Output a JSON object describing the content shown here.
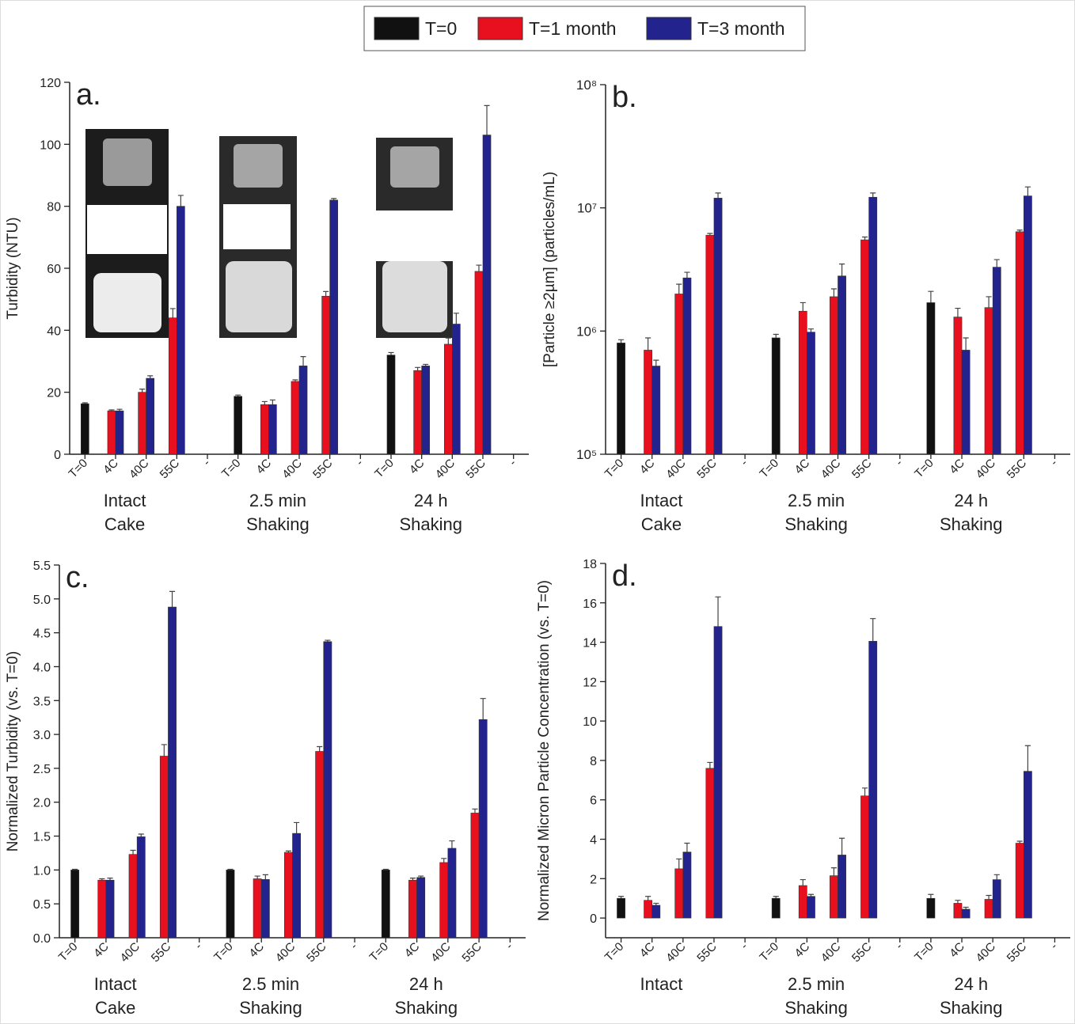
{
  "legend": [
    {
      "name": "T=0",
      "color": "#111111"
    },
    {
      "name": "T=1 month",
      "color": "#e8101e"
    },
    {
      "name": "T=3 month",
      "color": "#23238e"
    }
  ],
  "chart_data": [
    {
      "type": "bar",
      "panel_label": "a.",
      "ylabel": "Turbidity (NTU)",
      "log_scale": false,
      "categories": [
        "T=0",
        "4C",
        "40C",
        "55C",
        "-",
        "T=0",
        "4C",
        "40C",
        "55C",
        "-",
        "T=0",
        "4C",
        "40C",
        "55C",
        "-"
      ],
      "group_labels": [
        [
          "Intact",
          "Cake"
        ],
        [
          "2.5 min",
          "Shaking"
        ],
        [
          "24 h",
          "Shaking"
        ]
      ],
      "series": [
        {
          "values": [
            16.3,
            null,
            null,
            null,
            null,
            18.7,
            null,
            null,
            null,
            null,
            32,
            null,
            null,
            null,
            null
          ],
          "errors": [
            0.3,
            null,
            null,
            null,
            null,
            0.4,
            null,
            null,
            null,
            null,
            0.8,
            null,
            null,
            null,
            null
          ]
        },
        {
          "values": [
            null,
            14,
            20,
            44,
            null,
            null,
            16,
            23.5,
            51,
            null,
            null,
            27,
            35.5,
            59,
            null
          ],
          "errors": [
            null,
            0.3,
            1,
            3,
            null,
            null,
            1,
            0.5,
            1.5,
            null,
            null,
            1,
            2,
            2,
            null
          ]
        },
        {
          "values": [
            null,
            14,
            24.5,
            80,
            null,
            null,
            16,
            28.5,
            82,
            null,
            null,
            28.5,
            42,
            103,
            null
          ],
          "errors": [
            null,
            0.5,
            0.8,
            3.5,
            null,
            null,
            1.5,
            3,
            0.5,
            null,
            null,
            0.5,
            3.5,
            9.5,
            null
          ]
        }
      ],
      "ylim": [
        0,
        120
      ],
      "yticks": [
        0,
        20,
        40,
        60,
        80,
        100,
        120
      ]
    },
    {
      "type": "bar",
      "panel_label": "b.",
      "ylabel": "[Particle ≥2µm] (particles/mL)",
      "log_scale": true,
      "categories": [
        "T=0",
        "4C",
        "40C",
        "55C",
        "-",
        "T=0",
        "4C",
        "40C",
        "55C",
        "-",
        "T=0",
        "4C",
        "40C",
        "55C",
        "-"
      ],
      "group_labels": [
        [
          "Intact",
          "Cake"
        ],
        [
          "2.5 min",
          "Shaking"
        ],
        [
          "24 h",
          "Shaking"
        ]
      ],
      "series": [
        {
          "values": [
            800000,
            null,
            null,
            null,
            null,
            880000,
            null,
            null,
            null,
            null,
            1700000,
            null,
            null,
            null,
            null
          ],
          "errors": [
            50000,
            null,
            null,
            null,
            null,
            60000,
            null,
            null,
            null,
            null,
            400000,
            null,
            null,
            null,
            null
          ]
        },
        {
          "values": [
            null,
            700000,
            2000000,
            6000000,
            null,
            null,
            1450000,
            1900000,
            5500000,
            null,
            null,
            1300000,
            1550000,
            6400000,
            null
          ],
          "errors": [
            null,
            180000,
            400000,
            200000,
            null,
            null,
            250000,
            300000,
            300000,
            null,
            null,
            230000,
            350000,
            200000,
            null
          ]
        },
        {
          "values": [
            null,
            520000,
            2700000,
            12000000,
            null,
            null,
            980000,
            2800000,
            12200000,
            null,
            null,
            700000,
            3300000,
            12500000,
            null
          ],
          "errors": [
            null,
            60000,
            300000,
            1200000,
            null,
            null,
            60000,
            700000,
            1000000,
            null,
            null,
            180000,
            500000,
            2300000,
            null
          ]
        }
      ],
      "ylim": [
        100000,
        100000000
      ],
      "yticks": [
        {
          "value": 100000,
          "label": "10⁵"
        },
        {
          "value": 1000000,
          "label": "10⁶"
        },
        {
          "value": 10000000,
          "label": "10⁷"
        },
        {
          "value": 100000000,
          "label": "10⁸"
        }
      ]
    },
    {
      "type": "bar",
      "panel_label": "c.",
      "ylabel": "Normalized Turbidity (vs. T=0)",
      "log_scale": false,
      "categories": [
        "T=0",
        "4C",
        "40C",
        "55C",
        "-",
        "T=0",
        "4C",
        "40C",
        "55C",
        "-",
        "T=0",
        "4C",
        "40C",
        "55C",
        "-"
      ],
      "group_labels": [
        [
          "Intact",
          "Cake"
        ],
        [
          "2.5 min",
          "Shaking"
        ],
        [
          "24 h",
          "Shaking"
        ]
      ],
      "series": [
        {
          "values": [
            1,
            null,
            null,
            null,
            null,
            1,
            null,
            null,
            null,
            null,
            1,
            null,
            null,
            null,
            null
          ],
          "errors": [
            0.01,
            null,
            null,
            null,
            null,
            0.01,
            null,
            null,
            null,
            null,
            0.01,
            null,
            null,
            null,
            null
          ]
        },
        {
          "values": [
            null,
            0.85,
            1.23,
            2.68,
            null,
            null,
            0.87,
            1.26,
            2.75,
            null,
            null,
            0.85,
            1.11,
            1.84,
            null
          ],
          "errors": [
            null,
            0.02,
            0.06,
            0.17,
            null,
            null,
            0.04,
            0.02,
            0.07,
            null,
            null,
            0.03,
            0.06,
            0.06,
            null
          ]
        },
        {
          "values": [
            null,
            0.85,
            1.49,
            4.88,
            null,
            null,
            0.86,
            1.54,
            4.37,
            null,
            null,
            0.89,
            1.32,
            3.22,
            null
          ],
          "errors": [
            null,
            0.03,
            0.04,
            0.23,
            null,
            null,
            0.07,
            0.16,
            0.02,
            null,
            null,
            0.02,
            0.11,
            0.31,
            null
          ]
        }
      ],
      "ylim": [
        0,
        5.5
      ],
      "yticks": [
        {
          "value": 0,
          "label": "0.0"
        },
        0.5,
        {
          "value": 1,
          "label": "1.0"
        },
        1.5,
        {
          "value": 2,
          "label": "2.0"
        },
        2.5,
        {
          "value": 3,
          "label": "3.0"
        },
        3.5,
        {
          "value": 4,
          "label": "4.0"
        },
        4.5,
        {
          "value": 5,
          "label": "5.0"
        },
        5.5
      ]
    },
    {
      "type": "bar",
      "panel_label": "d.",
      "ylabel": "Normalized Micron Particle Concentration (vs. T=0)",
      "log_scale": false,
      "categories": [
        "T=0",
        "4C",
        "40C",
        "55C",
        "-",
        "T=0",
        "4C",
        "40C",
        "55C",
        "-",
        "T=0",
        "4C",
        "40C",
        "55C",
        "-"
      ],
      "group_labels": [
        [
          "Intact"
        ],
        [
          "2.5 min",
          "Shaking"
        ],
        [
          "24 h",
          "Shaking"
        ]
      ],
      "series": [
        {
          "values": [
            1,
            null,
            null,
            null,
            null,
            1,
            null,
            null,
            null,
            null,
            1,
            null,
            null,
            null,
            null
          ],
          "errors": [
            0.1,
            null,
            null,
            null,
            null,
            0.1,
            null,
            null,
            null,
            null,
            0.2,
            null,
            null,
            null,
            null
          ]
        },
        {
          "values": [
            null,
            0.9,
            2.5,
            7.6,
            null,
            null,
            1.65,
            2.15,
            6.2,
            null,
            null,
            0.75,
            0.95,
            3.8,
            null
          ],
          "errors": [
            null,
            0.2,
            0.5,
            0.3,
            null,
            null,
            0.3,
            0.4,
            0.4,
            null,
            null,
            0.15,
            0.2,
            0.1,
            null
          ]
        },
        {
          "values": [
            null,
            0.65,
            3.35,
            14.8,
            null,
            null,
            1.1,
            3.2,
            14.05,
            null,
            null,
            0.45,
            1.95,
            7.45,
            null
          ],
          "errors": [
            null,
            0.1,
            0.45,
            1.5,
            null,
            null,
            0.1,
            0.85,
            1.15,
            null,
            null,
            0.1,
            0.25,
            1.3,
            null
          ]
        }
      ],
      "ylim": [
        -1,
        18
      ],
      "yticks": [
        0,
        2,
        4,
        6,
        8,
        10,
        12,
        14,
        16,
        18
      ]
    }
  ]
}
